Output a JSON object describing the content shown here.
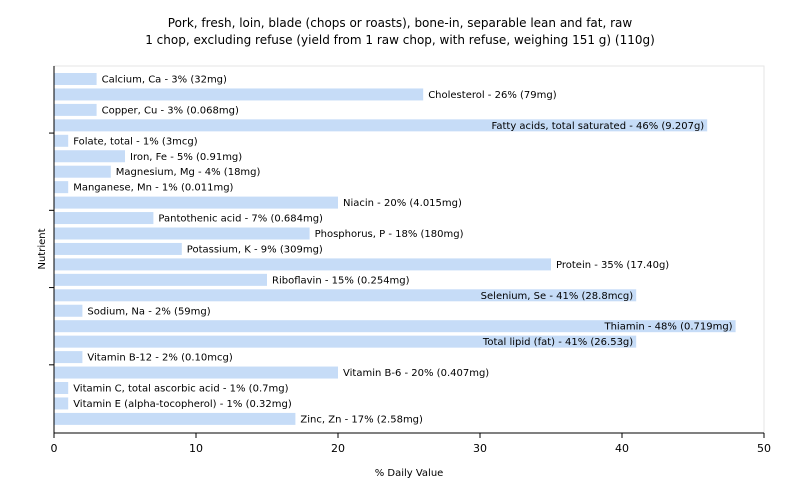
{
  "chart_data": {
    "type": "bar",
    "orientation": "horizontal",
    "title": "Pork, fresh, loin, blade (chops or roasts), bone-in, separable lean and fat, raw",
    "subtitle": "1 chop, excluding refuse (yield from 1 raw chop, with refuse, weighing 151 g) (110g)",
    "xlabel": "% Daily Value",
    "ylabel": "Nutrient",
    "xlim": [
      0,
      50
    ],
    "xticks": [
      "0",
      "10",
      "20",
      "30",
      "40",
      "50"
    ],
    "bar_color": "#c6dcf7",
    "grid": false,
    "categories": [
      "Calcium, Ca",
      "Cholesterol",
      "Copper, Cu",
      "Fatty acids, total saturated",
      "Folate, total",
      "Iron, Fe",
      "Magnesium, Mg",
      "Manganese, Mn",
      "Niacin",
      "Pantothenic acid",
      "Phosphorus, P",
      "Potassium, K",
      "Protein",
      "Riboflavin",
      "Selenium, Se",
      "Sodium, Na",
      "Thiamin",
      "Total lipid (fat)",
      "Vitamin B-12",
      "Vitamin B-6",
      "Vitamin C, total ascorbic acid",
      "Vitamin E (alpha-tocopherol)",
      "Zinc, Zn"
    ],
    "values": [
      3,
      26,
      3,
      46,
      1,
      5,
      4,
      1,
      20,
      7,
      18,
      9,
      35,
      15,
      41,
      2,
      48,
      41,
      2,
      20,
      1,
      1,
      17
    ],
    "labels": [
      "Calcium, Ca - 3% (32mg)",
      "Cholesterol - 26% (79mg)",
      "Copper, Cu - 3% (0.068mg)",
      "Fatty acids, total saturated - 46% (9.207g)",
      "Folate, total - 1% (3mcg)",
      "Iron, Fe - 5% (0.91mg)",
      "Magnesium, Mg - 4% (18mg)",
      "Manganese, Mn - 1% (0.011mg)",
      "Niacin - 20% (4.015mg)",
      "Pantothenic acid - 7% (0.684mg)",
      "Phosphorus, P - 18% (180mg)",
      "Potassium, K - 9% (309mg)",
      "Protein - 35% (17.40g)",
      "Riboflavin - 15% (0.254mg)",
      "Selenium, Se - 41% (28.8mcg)",
      "Sodium, Na - 2% (59mg)",
      "Thiamin - 48% (0.719mg)",
      "Total lipid (fat) - 41% (26.53g)",
      "Vitamin B-12 - 2% (0.10mcg)",
      "Vitamin B-6 - 20% (0.407mg)",
      "Vitamin C, total ascorbic acid - 1% (0.7mg)",
      "Vitamin E (alpha-tocopherol) - 1% (0.32mg)",
      "Zinc, Zn - 17% (2.58mg)"
    ]
  }
}
